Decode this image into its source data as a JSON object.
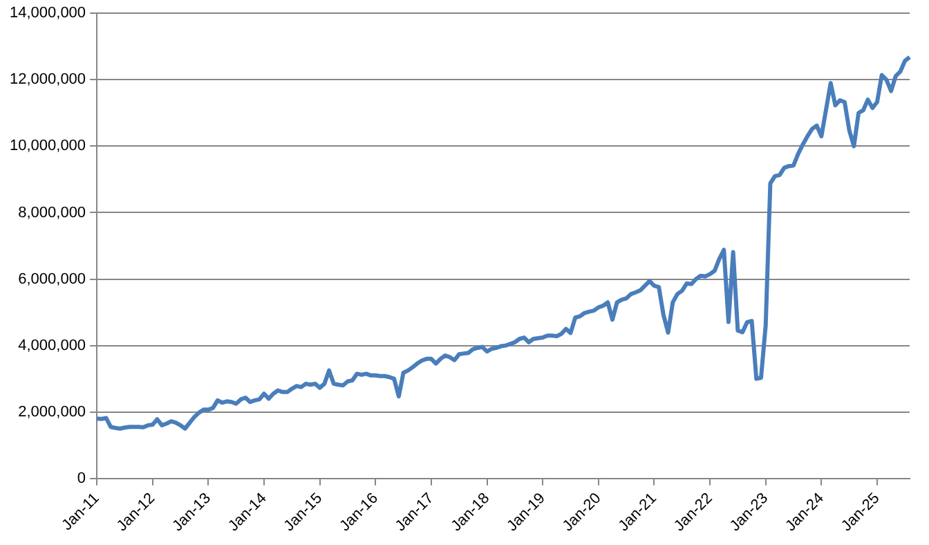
{
  "chart_data": {
    "type": "line",
    "categories": [
      "Jan-11",
      null,
      null,
      null,
      null,
      null,
      null,
      null,
      null,
      null,
      null,
      null,
      "Jan-12",
      null,
      null,
      null,
      null,
      null,
      null,
      null,
      null,
      null,
      null,
      null,
      "Jan-13",
      null,
      null,
      null,
      null,
      null,
      null,
      null,
      null,
      null,
      null,
      null,
      "Jan-14",
      null,
      null,
      null,
      null,
      null,
      null,
      null,
      null,
      null,
      null,
      null,
      "Jan-15",
      null,
      null,
      null,
      null,
      null,
      null,
      null,
      null,
      null,
      null,
      null,
      "Jan-16",
      null,
      null,
      null,
      null,
      null,
      null,
      null,
      null,
      null,
      null,
      null,
      "Jan-17",
      null,
      null,
      null,
      null,
      null,
      null,
      null,
      null,
      null,
      null,
      null,
      "Jan-18",
      null,
      null,
      null,
      null,
      null,
      null,
      null,
      null,
      null,
      null,
      null,
      "Jan-19",
      null,
      null,
      null,
      null,
      null,
      null,
      null,
      null,
      null,
      null,
      null,
      "Jan-20",
      null,
      null,
      null,
      null,
      null,
      null,
      null,
      null,
      null,
      null,
      null,
      "Jan-21",
      null,
      null,
      null,
      null,
      null,
      null,
      null,
      null,
      null,
      null,
      null,
      "Jan-22",
      null,
      null,
      null,
      null,
      null,
      null,
      null,
      null,
      null,
      null,
      null,
      "Jan-23",
      null,
      null,
      null,
      null,
      null,
      null,
      null,
      null,
      null,
      null,
      null,
      "Jan-24",
      null,
      null,
      null,
      null,
      null,
      null,
      null,
      null,
      null,
      null,
      null,
      "Jan-25",
      null,
      null,
      null,
      null,
      null,
      null,
      null
    ],
    "series": [
      {
        "color": "#4a7ebb",
        "values": [
          1800000,
          1790000,
          1820000,
          1550000,
          1520000,
          1500000,
          1530000,
          1550000,
          1550000,
          1550000,
          1540000,
          1600000,
          1620000,
          1780000,
          1600000,
          1650000,
          1720000,
          1680000,
          1600000,
          1500000,
          1680000,
          1850000,
          1980000,
          2070000,
          2070000,
          2120000,
          2350000,
          2280000,
          2320000,
          2300000,
          2250000,
          2380000,
          2430000,
          2300000,
          2350000,
          2380000,
          2550000,
          2400000,
          2550000,
          2650000,
          2600000,
          2600000,
          2700000,
          2780000,
          2750000,
          2850000,
          2820000,
          2850000,
          2730000,
          2850000,
          3250000,
          2850000,
          2820000,
          2800000,
          2920000,
          2950000,
          3150000,
          3120000,
          3150000,
          3100000,
          3100000,
          3080000,
          3080000,
          3050000,
          3000000,
          2470000,
          3180000,
          3250000,
          3350000,
          3460000,
          3550000,
          3600000,
          3600000,
          3460000,
          3600000,
          3700000,
          3650000,
          3560000,
          3740000,
          3760000,
          3780000,
          3890000,
          3930000,
          3960000,
          3820000,
          3900000,
          3930000,
          3980000,
          4000000,
          4050000,
          4100000,
          4200000,
          4240000,
          4100000,
          4200000,
          4220000,
          4240000,
          4300000,
          4300000,
          4280000,
          4350000,
          4500000,
          4380000,
          4840000,
          4880000,
          4980000,
          5020000,
          5050000,
          5150000,
          5200000,
          5300000,
          4780000,
          5300000,
          5380000,
          5420000,
          5550000,
          5600000,
          5660000,
          5800000,
          5940000,
          5800000,
          5760000,
          4920000,
          4390000,
          5300000,
          5550000,
          5650000,
          5870000,
          5850000,
          6000000,
          6100000,
          6080000,
          6150000,
          6250000,
          6600000,
          6880000,
          4710000,
          6810000,
          4450000,
          4400000,
          4700000,
          4740000,
          3000000,
          3030000,
          4600000,
          8880000,
          9100000,
          9130000,
          9350000,
          9400000,
          9420000,
          9770000,
          10050000,
          10300000,
          10520000,
          10620000,
          10300000,
          11100000,
          11900000,
          11230000,
          11380000,
          11330000,
          10480000,
          10000000,
          11000000,
          11080000,
          11400000,
          11150000,
          11330000,
          12140000,
          12000000,
          11660000,
          12110000,
          12250000,
          12570000,
          12680000
        ]
      }
    ],
    "ylim": [
      0,
      14000000
    ],
    "yticks": [
      {
        "value": 0,
        "label": "0"
      },
      {
        "value": 2000000,
        "label": "2,000,000"
      },
      {
        "value": 4000000,
        "label": "4,000,000"
      },
      {
        "value": 6000000,
        "label": "6,000,000"
      },
      {
        "value": 8000000,
        "label": "8,000,000"
      },
      {
        "value": 10000000,
        "label": "10,000,000"
      },
      {
        "value": 12000000,
        "label": "12,000,000"
      },
      {
        "value": 14000000,
        "label": "14,000,000"
      }
    ],
    "grid": "y",
    "legend": false,
    "marker": "none",
    "line_style": "solid"
  }
}
